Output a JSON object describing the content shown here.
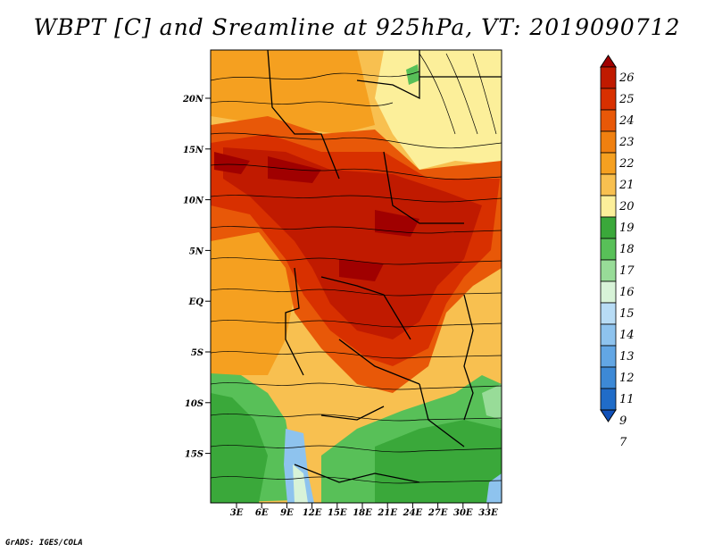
{
  "title": "WBPT [C] and Sreamline at 925hPa, VT: 2019090712",
  "credit": "GrADS: IGES/COLA",
  "map": {
    "lat_labels": [
      "20N",
      "15N",
      "10N",
      "5N",
      "EQ",
      "5S",
      "10S",
      "15S"
    ],
    "lon_labels": [
      "3E",
      "6E",
      "9E",
      "12E",
      "15E",
      "18E",
      "21E",
      "24E",
      "27E",
      "30E",
      "33E"
    ]
  },
  "colorbar": {
    "levels": [
      "26",
      "25",
      "24",
      "23",
      "22",
      "21",
      "20",
      "19",
      "18",
      "17",
      "16",
      "15",
      "14",
      "13",
      "12",
      "11",
      "9",
      "7"
    ],
    "colors": [
      "#a00000",
      "#c01a00",
      "#d83000",
      "#e85808",
      "#f08010",
      "#f5a020",
      "#f8c050",
      "#fcef9a",
      "#3aa83a",
      "#58c058",
      "#98dc98",
      "#d8f3d8",
      "#b8dcf5",
      "#8ec3ee",
      "#62a6e4",
      "#3d89d6",
      "#206cc8",
      "#1050b8"
    ]
  }
}
